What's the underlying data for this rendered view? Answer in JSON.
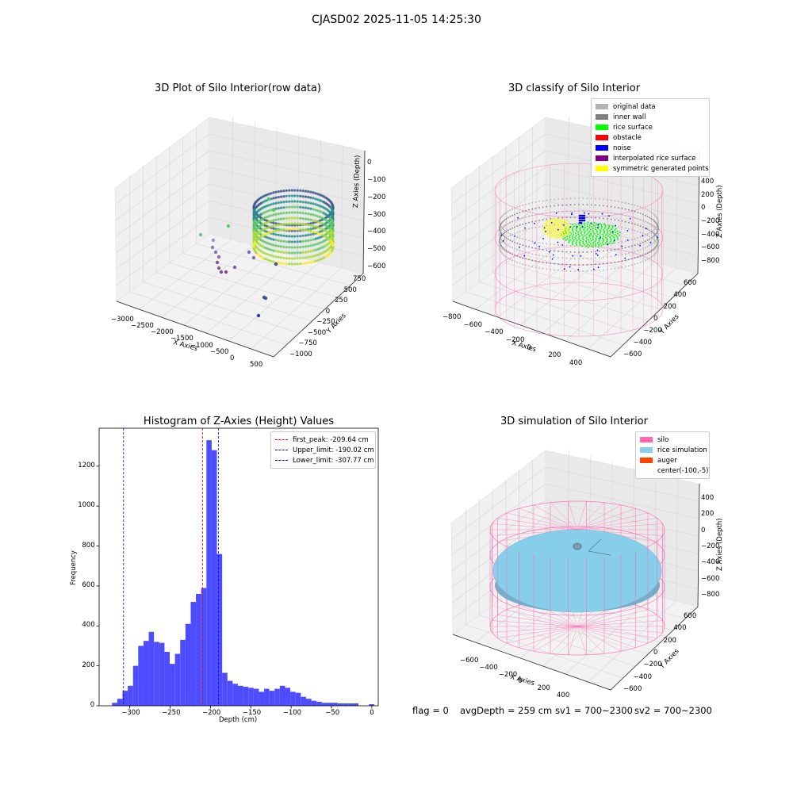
{
  "suptitle": "CJASD02 2025-11-05 14:25:30",
  "footer": {
    "flag": "flag = 0",
    "avg_depth": "avgDepth = 259 cm",
    "sv1": "sv1 = 700~2300",
    "sv2": "sv2 = 700~2300"
  },
  "colors": {
    "histogram_bar": "#4d4dff",
    "first_peak": "#ff0000",
    "limits": "#0000ff",
    "silo_wire": "#ff69b4",
    "rice_sim": "#87ceeb",
    "auger": "#ff4500"
  },
  "chart_data": [
    {
      "type": "scatter3d",
      "title": "3D Plot of Silo Interior(row data)",
      "xlabel": "X Axies",
      "ylabel": "Y Axies",
      "zlabel": "Z Axies (Depth)",
      "x_ticks": [
        "−3000",
        "−2500",
        "−2000",
        "−1500",
        "−1000",
        "−500",
        "0",
        "500"
      ],
      "y_ticks": [
        "−1000",
        "−750",
        "−500",
        "−250",
        "0",
        "250",
        "500",
        "750"
      ],
      "z_ticks": [
        "−600",
        "−500",
        "−400",
        "−300",
        "−200",
        "−100",
        "0"
      ],
      "xlim": [
        -3200,
        600
      ],
      "ylim": [
        -1100,
        800
      ],
      "zlim": [
        -650,
        0
      ],
      "colormap": "viridis"
    },
    {
      "type": "scatter3d",
      "title": "3D classify of Silo Interior",
      "xlabel": "X Axies",
      "ylabel": "Y Axies",
      "zlabel": "Z Axies (Depth)",
      "x_ticks": [
        "−800",
        "−600",
        "−400",
        "−200",
        "0",
        "200",
        "400"
      ],
      "y_ticks": [
        "−600",
        "−400",
        "−200",
        "0",
        "200",
        "400",
        "600"
      ],
      "z_ticks": [
        "−800",
        "−600",
        "−400",
        "−200",
        "0",
        "200",
        "400"
      ],
      "z_tick_partial": "00",
      "legend_position": "top-right",
      "legend": [
        {
          "label": "original data",
          "color": "#b3b3b3"
        },
        {
          "label": "inner wall",
          "color": "#808080"
        },
        {
          "label": "rice surface",
          "color": "#00ff00"
        },
        {
          "label": "obstacle",
          "color": "#ff0000"
        },
        {
          "label": "noise",
          "color": "#0000ff"
        },
        {
          "label": "interpolated rice surface",
          "color": "#800080"
        },
        {
          "label": "symmetric generated points",
          "color": "#ffff00"
        }
      ]
    },
    {
      "type": "bar",
      "title": "Histogram of Z-Axies (Height) Values",
      "xlabel": "Depth (cm)",
      "ylabel": "Frequency",
      "xlim": [
        -338,
        8
      ],
      "ylim": [
        0,
        1390
      ],
      "x_ticks": [
        {
          "v": -300,
          "label": "−300"
        },
        {
          "v": -250,
          "label": "−250"
        },
        {
          "v": -200,
          "label": "−200"
        },
        {
          "v": -150,
          "label": "−150"
        },
        {
          "v": -100,
          "label": "−100"
        },
        {
          "v": -50,
          "label": "−50"
        },
        {
          "v": 0,
          "label": "0"
        }
      ],
      "y_ticks": [
        {
          "v": 0,
          "label": "0"
        },
        {
          "v": 200,
          "label": "200"
        },
        {
          "v": 400,
          "label": "400"
        },
        {
          "v": 600,
          "label": "600"
        },
        {
          "v": 800,
          "label": "800"
        },
        {
          "v": 1000,
          "label": "1000"
        },
        {
          "v": 1200,
          "label": "1200"
        }
      ],
      "bin_width": 6.5,
      "bin_starts": [
        -322,
        -315.5,
        -309,
        -302.5,
        -296,
        -289.5,
        -283,
        -276.5,
        -270,
        -263.5,
        -257,
        -250.5,
        -244,
        -237.5,
        -231,
        -224.5,
        -218,
        -211.5,
        -205,
        -198.5,
        -192,
        -185.5,
        -179,
        -172.5,
        -166,
        -159.5,
        -153,
        -146.5,
        -140,
        -133.5,
        -127,
        -120.5,
        -114,
        -107.5,
        -101,
        -94.5,
        -88,
        -81.5,
        -75,
        -68.5,
        -62,
        -55.5,
        -49,
        -42.5,
        -36,
        -29.5,
        -23,
        -16.5,
        -10,
        -3.5
      ],
      "values": [
        15,
        35,
        75,
        100,
        200,
        300,
        325,
        370,
        320,
        315,
        270,
        210,
        260,
        330,
        410,
        520,
        560,
        590,
        1330,
        1280,
        760,
        165,
        125,
        110,
        100,
        95,
        90,
        85,
        70,
        85,
        75,
        85,
        100,
        90,
        70,
        65,
        45,
        35,
        25,
        20,
        15,
        15,
        15,
        12,
        12,
        12,
        12,
        0,
        0,
        8
      ],
      "vlines": [
        {
          "name": "first_peak",
          "x": -209.64,
          "label": "first_peak: -209.64 cm",
          "color": "#ff0000"
        },
        {
          "name": "upper_limit",
          "x": -190.02,
          "label": "Upper_limit: -190.02 cm",
          "color": "#0000ff"
        },
        {
          "name": "lower_limit",
          "x": -307.77,
          "label": "Lower_limit: -307.77 cm",
          "color": "#0000ff"
        }
      ],
      "legend_position": "top-right"
    },
    {
      "type": "surface3d",
      "title": "3D simulation of Silo Interior",
      "xlabel": "X Axies",
      "ylabel": "Y Axies",
      "zlabel": "Z Axies (Depth)",
      "x_ticks": [
        "−600",
        "−400",
        "−200",
        "0",
        "200",
        "400"
      ],
      "y_ticks": [
        "−600",
        "−400",
        "−200",
        "0",
        "200",
        "400",
        "600"
      ],
      "z_ticks": [
        "−800",
        "−600",
        "−400",
        "−200",
        "0",
        "200",
        "400"
      ],
      "legend_position": "top-right",
      "legend": [
        {
          "label": "silo",
          "color": "#ff69b4"
        },
        {
          "label": "rice simulation",
          "color": "#87ceeb"
        },
        {
          "label": "auger",
          "color": "#ff4500"
        },
        {
          "label": "center(-100,-5)",
          "color": ""
        }
      ]
    }
  ]
}
